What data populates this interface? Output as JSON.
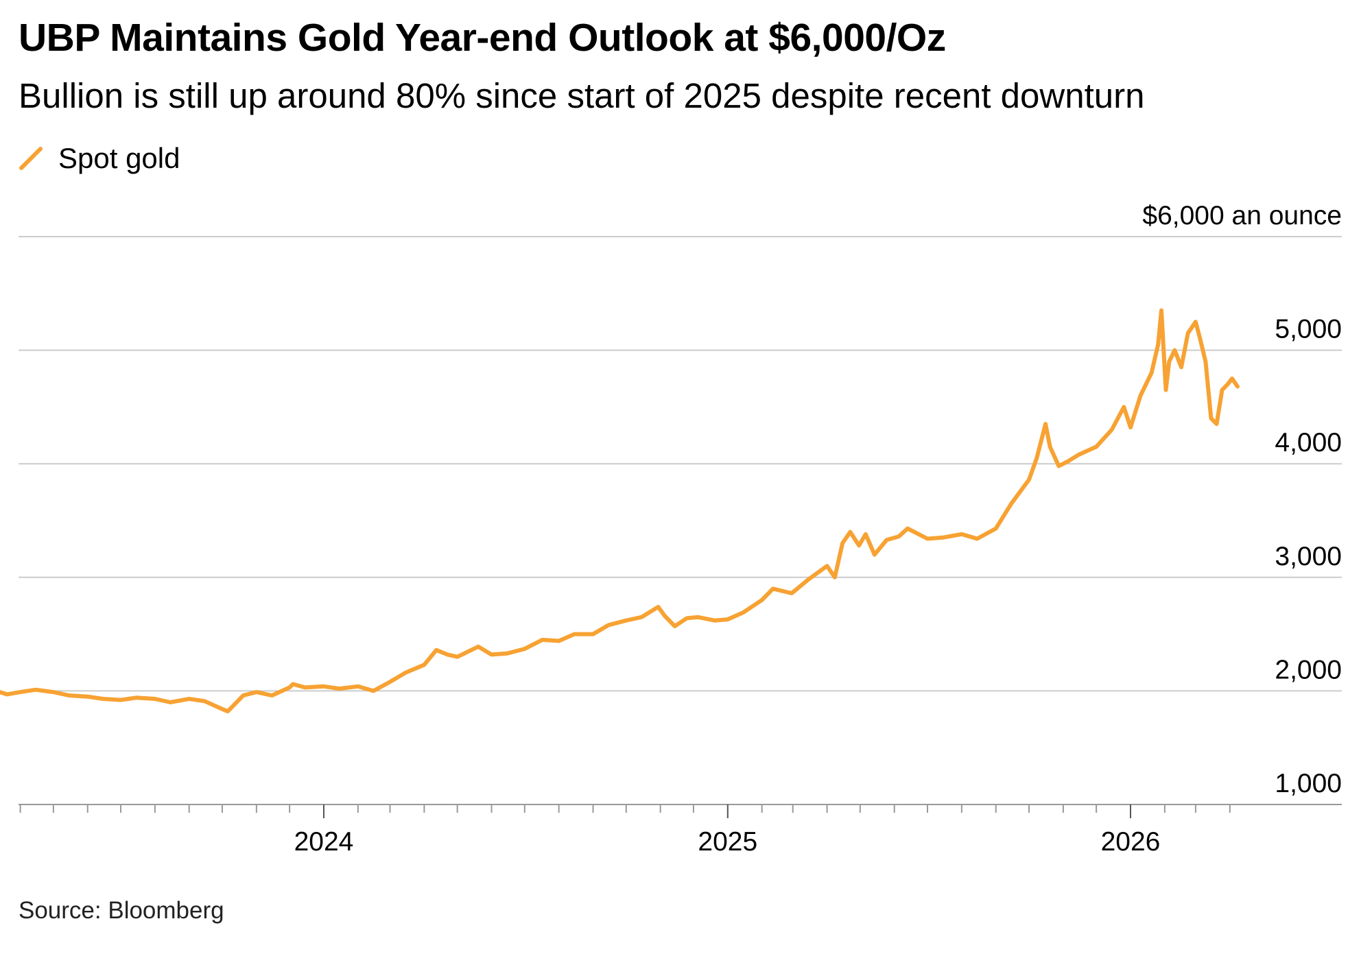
{
  "title": "UBP Maintains Gold Year-end Outlook at $6,000/Oz",
  "subtitle": "Bullion is still up around 80% since start of 2025 despite recent downturn",
  "legend": {
    "label": "Spot gold",
    "icon": "line-swatch-icon"
  },
  "source": "Source: Bloomberg",
  "colors": {
    "series": "#f7a233",
    "gridline": "#cccccc",
    "axis": "#999999"
  },
  "chart_data": {
    "type": "line",
    "title": "UBP Maintains Gold Year-end Outlook at $6,000/Oz",
    "subtitle": "Bullion is still up around 80% since start of 2025 despite recent downturn",
    "xlabel": "",
    "ylabel": "",
    "unit_label": "$6,000 an ounce",
    "ylim": [
      1000,
      6000
    ],
    "yticks": [
      1000,
      2000,
      3000,
      4000,
      5000,
      6000
    ],
    "ytick_labels": [
      "1,000",
      "2,000",
      "3,000",
      "4,000",
      "5,000",
      "$6,000 an ounce"
    ],
    "xticks": [
      "2024-01-01",
      "2025-01-01",
      "2026-01-01"
    ],
    "xtick_labels": [
      "2024",
      "2025",
      "2026"
    ],
    "xlim": [
      "2023-03-01",
      "2026-04-20"
    ],
    "grid": true,
    "legend_position": "top-left",
    "series": [
      {
        "name": "Spot gold",
        "x": [
          "2023-03-10",
          "2023-03-20",
          "2023-04-01",
          "2023-04-15",
          "2023-05-01",
          "2023-05-15",
          "2023-06-01",
          "2023-06-15",
          "2023-07-01",
          "2023-07-15",
          "2023-08-01",
          "2023-08-15",
          "2023-09-01",
          "2023-09-15",
          "2023-10-01",
          "2023-10-06",
          "2023-10-20",
          "2023-11-01",
          "2023-11-15",
          "2023-12-01",
          "2023-12-04",
          "2023-12-15",
          "2024-01-01",
          "2024-01-15",
          "2024-02-01",
          "2024-02-15",
          "2024-03-01",
          "2024-03-15",
          "2024-04-01",
          "2024-04-12",
          "2024-04-22",
          "2024-05-01",
          "2024-05-20",
          "2024-06-01",
          "2024-06-15",
          "2024-07-01",
          "2024-07-17",
          "2024-08-01",
          "2024-08-15",
          "2024-09-01",
          "2024-09-15",
          "2024-10-01",
          "2024-10-15",
          "2024-10-30",
          "2024-11-05",
          "2024-11-14",
          "2024-11-25",
          "2024-12-05",
          "2024-12-20",
          "2025-01-01",
          "2025-01-15",
          "2025-02-01",
          "2025-02-11",
          "2025-02-28",
          "2025-03-15",
          "2025-04-01",
          "2025-04-08",
          "2025-04-15",
          "2025-04-22",
          "2025-04-30",
          "2025-05-06",
          "2025-05-14",
          "2025-05-25",
          "2025-06-05",
          "2025-06-13",
          "2025-07-01",
          "2025-07-15",
          "2025-08-01",
          "2025-08-15",
          "2025-09-01",
          "2025-09-15",
          "2025-10-01",
          "2025-10-08",
          "2025-10-16",
          "2025-10-20",
          "2025-10-28",
          "2025-11-05",
          "2025-11-15",
          "2025-12-01",
          "2025-12-15",
          "2025-12-26",
          "2026-01-01",
          "2026-01-10",
          "2026-01-20",
          "2026-01-26",
          "2026-01-29",
          "2026-02-02",
          "2026-02-05",
          "2026-02-10",
          "2026-02-16",
          "2026-02-22",
          "2026-03-01",
          "2026-03-05",
          "2026-03-10",
          "2026-03-15",
          "2026-03-20",
          "2026-03-25",
          "2026-03-30",
          "2026-04-03",
          "2026-04-08"
        ],
        "values": [
          2000,
          1970,
          1990,
          2010,
          1990,
          1960,
          1950,
          1930,
          1920,
          1940,
          1930,
          1900,
          1930,
          1910,
          1840,
          1820,
          1960,
          1990,
          1960,
          2030,
          2060,
          2030,
          2040,
          2020,
          2040,
          2000,
          2080,
          2160,
          2230,
          2360,
          2320,
          2300,
          2390,
          2320,
          2330,
          2370,
          2450,
          2440,
          2500,
          2500,
          2580,
          2620,
          2650,
          2740,
          2660,
          2570,
          2640,
          2650,
          2620,
          2630,
          2690,
          2800,
          2900,
          2860,
          2980,
          3100,
          3000,
          3300,
          3400,
          3280,
          3380,
          3200,
          3330,
          3360,
          3430,
          3340,
          3350,
          3380,
          3340,
          3430,
          3650,
          3860,
          4050,
          4350,
          4150,
          3980,
          4020,
          4080,
          4150,
          4300,
          4500,
          4320,
          4600,
          4800,
          5050,
          5350,
          4650,
          4900,
          5000,
          4850,
          5150,
          5250,
          5100,
          4900,
          4400,
          4350,
          4650,
          4700,
          4750,
          4680
        ]
      }
    ]
  }
}
